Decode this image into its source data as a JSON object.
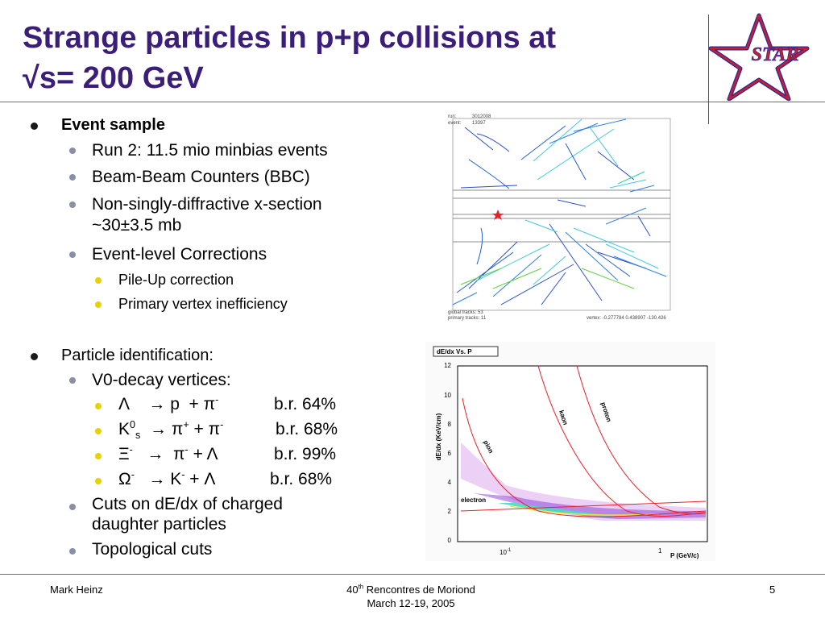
{
  "title": {
    "line1": "Strange particles in p+p collisions at",
    "line2": "√s= 200 GeV"
  },
  "logo": {
    "text": "STAR",
    "colors": {
      "star_fill": "#cc1f1f",
      "star_outline": "#2a2aa8"
    }
  },
  "bullets": {
    "event_sample": {
      "label": "Event sample",
      "items": [
        "Run 2: 11.5 mio minbias events",
        "Beam-Beam Counters (BBC)",
        "Non-singly-diffractive x-section",
        "~30±3.5 mb",
        "Event-level Corrections"
      ],
      "corrections": [
        "Pile-Up correction",
        "Primary vertex inefficiency"
      ]
    },
    "particle_id": {
      "label": "Particle identification:",
      "v0_label": "V0-decay vertices:",
      "decays": [
        {
          "parent": "Λ",
          "arrow": "→",
          "products": "p  + π",
          "br": "b.r. 64%"
        },
        {
          "parent": "K",
          "arrow": "→",
          "products": "π + π",
          "br": "b.r. 68%"
        },
        {
          "parent": "Ξ",
          "arrow": "→",
          "products": "π + Λ",
          "br": "b.r. 99%"
        },
        {
          "parent": "Ω",
          "arrow": "→",
          "products": "K + Λ",
          "br": "b.r. 68%"
        }
      ],
      "cuts_line1": "Cuts on dE/dx of charged",
      "cuts_line2": "daughter particles",
      "topo": "Topological cuts"
    }
  },
  "event_display": {
    "run_label": "run:",
    "run_value": "3012008",
    "event_label": "event:",
    "event_value": "13397",
    "global_tracks": "global tracks:  53",
    "primary_tracks": "primary tracks: 11",
    "vertex": "vertex: -0.277784 0.438907 -130.426"
  },
  "dedx_plot": {
    "title": "dE/dx Vs. P",
    "ylabel": "dE/dx (KeV/cm)",
    "xlabel": "P (GeV/c)",
    "yticks": [
      "0",
      "2",
      "4",
      "6",
      "8",
      "10",
      "12"
    ],
    "xticks": [
      "10",
      "1"
    ],
    "xtick_exp": "-1",
    "bands": [
      "pion",
      "kaon",
      "proton",
      "electron"
    ],
    "colors": {
      "curve": "#e8202a",
      "cloud": "#a020d0",
      "core": "#3fe0c0"
    }
  },
  "footer": {
    "author": "Mark Heinz",
    "conf_pre": "40",
    "conf_sup": "th",
    "conf_post": " Rencontres de Moriond",
    "dates": "March 12-19, 2005",
    "page": "5"
  }
}
